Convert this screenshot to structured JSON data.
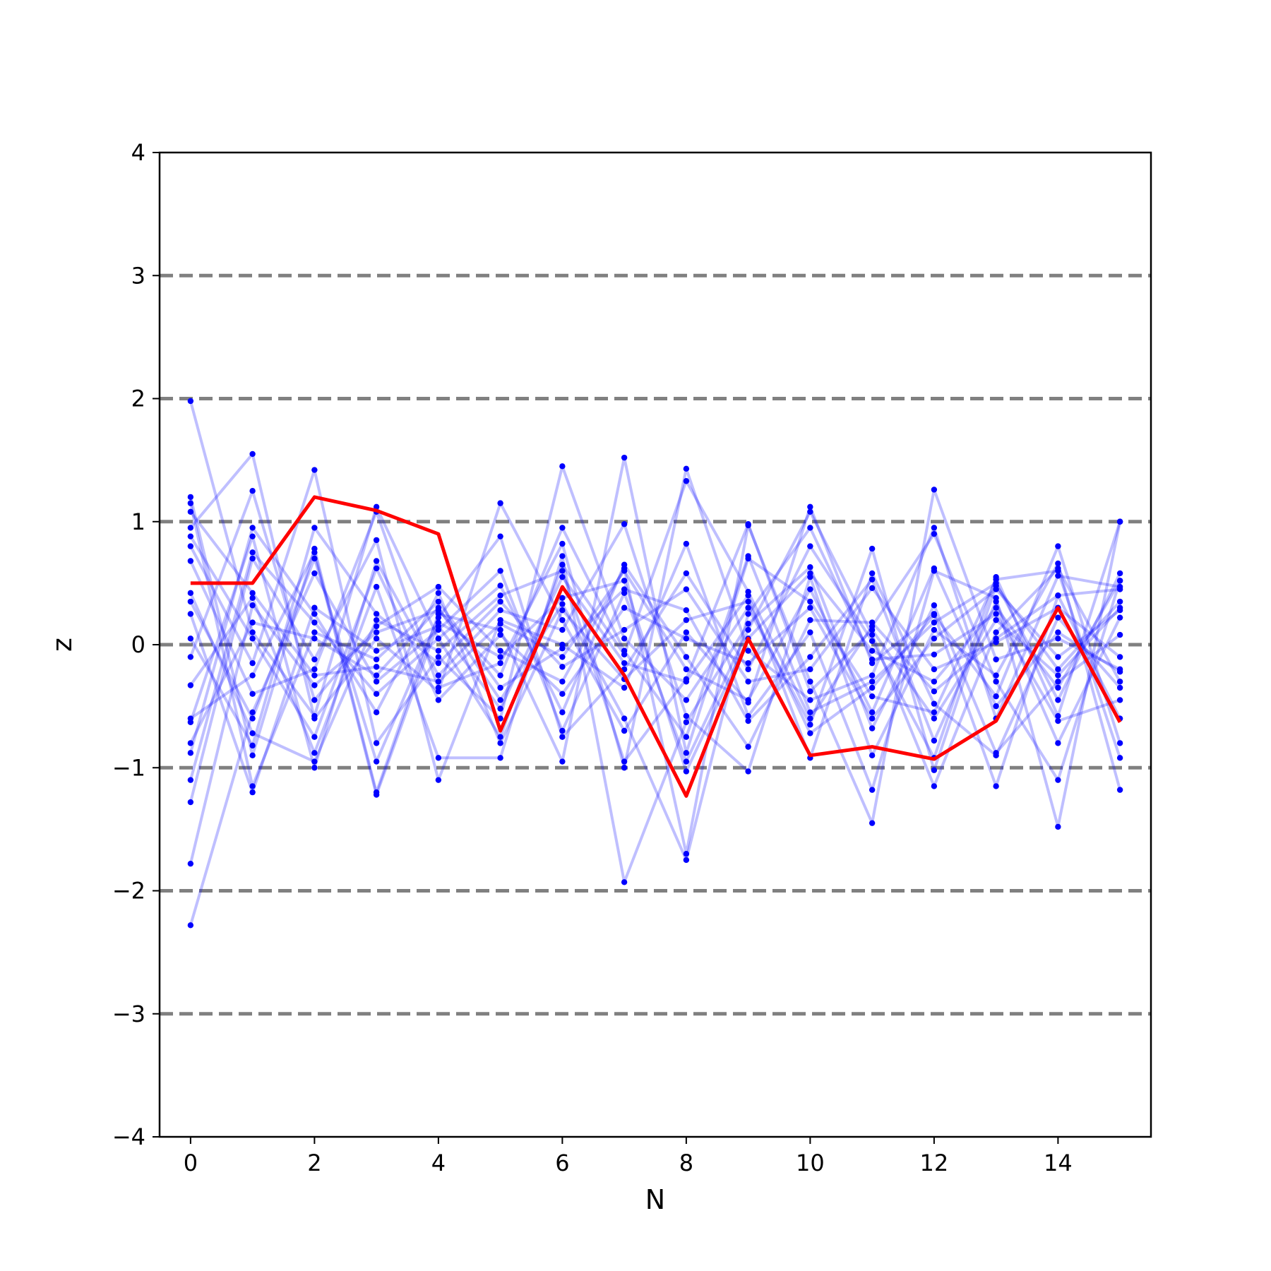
{
  "chart_data": {
    "type": "line",
    "xlabel": "N",
    "ylabel": "z",
    "xlim": [
      -0.5,
      15.5
    ],
    "ylim": [
      -4,
      4
    ],
    "x": [
      0,
      1,
      2,
      3,
      4,
      5,
      6,
      7,
      8,
      9,
      10,
      11,
      12,
      13,
      14,
      15
    ],
    "xticks": [
      0,
      2,
      4,
      6,
      8,
      10,
      12,
      14
    ],
    "yticks": [
      -4,
      -3,
      -2,
      -1,
      0,
      1,
      2,
      3,
      4
    ],
    "xtick_labels": [
      "0",
      "2",
      "4",
      "6",
      "8",
      "10",
      "12",
      "14"
    ],
    "ytick_labels": [
      "−4",
      "−3",
      "−2",
      "−1",
      "0",
      "1",
      "2",
      "3",
      "4"
    ],
    "reference_lines": [
      -3,
      -2,
      -1,
      0,
      1,
      2,
      3
    ],
    "reference_line_style": "dashed",
    "reference_line_color": "#808080",
    "background_color": "#0000ff",
    "highlight_color": "#ff0000",
    "background_series": [
      {
        "values": [
          1.98,
          0.1,
          -0.58,
          1.12,
          0.05,
          -0.75,
          0.65,
          -0.08,
          1.33,
          0.43,
          -0.6,
          0.15,
          0.9,
          -0.3,
          -1.1,
          0.52
        ]
      },
      {
        "values": [
          1.2,
          -0.9,
          0.78,
          -1.2,
          0.25,
          0.12,
          -0.95,
          1.52,
          -0.88,
          0.7,
          0.35,
          -0.42,
          -0.55,
          0.53,
          0.6,
          -0.92
        ]
      },
      {
        "values": [
          0.95,
          1.55,
          -0.6,
          0.05,
          -0.38,
          1.15,
          0.2,
          -0.7,
          0.1,
          -0.47,
          1.12,
          -0.15,
          0.25,
          -1.15,
          0.4,
          0.45
        ]
      },
      {
        "values": [
          0.8,
          -0.15,
          1.42,
          -0.8,
          -0.1,
          -0.6,
          1.45,
          0.05,
          -0.45,
          0.3,
          -0.65,
          0.78,
          -1.02,
          0.48,
          -0.2,
          0.35
        ]
      },
      {
        "values": [
          -0.1,
          1.25,
          -0.45,
          0.15,
          0.47,
          -0.05,
          -0.3,
          0.62,
          -1.7,
          0.97,
          -0.3,
          -1.45,
          1.26,
          -0.12,
          0.05,
          -0.2
        ]
      },
      {
        "values": [
          0.35,
          -0.6,
          0.7,
          -0.95,
          0.22,
          0.88,
          -0.75,
          -0.2,
          0.58,
          -0.2,
          0.8,
          0.03,
          -0.92,
          0.55,
          -0.58,
          1.0
        ]
      },
      {
        "values": [
          -0.63,
          0.88,
          -1.0,
          0.68,
          -0.25,
          0.28,
          0.12,
          0.98,
          -0.58,
          -1.03,
          0.55,
          -0.9,
          0.12,
          -0.25,
          0.66,
          -1.18
        ]
      },
      {
        "values": [
          1.15,
          -1.15,
          0.1,
          -0.12,
          0.35,
          -0.35,
          -0.03,
          0.45,
          0.28,
          -0.62,
          -0.1,
          0.53,
          -0.78,
          0.35,
          -0.8,
          0.22
        ]
      },
      {
        "values": [
          -0.33,
          0.38,
          -0.88,
          0.47,
          -0.92,
          -0.92,
          0.72,
          -1.93,
          -0.63,
          0.17,
          0.63,
          -0.68,
          0.32,
          -0.88,
          -0.3,
          0.08
        ]
      },
      {
        "values": [
          -1.1,
          0.75,
          0.18,
          -0.4,
          0.05,
          0.48,
          -0.55,
          0.65,
          -0.1,
          -0.83,
          0.2,
          0.18,
          -0.38,
          0.05,
          0.4,
          -0.6
        ]
      },
      {
        "values": [
          0.68,
          -0.4,
          -0.2,
          1.08,
          -0.35,
          -0.15,
          0.82,
          -1.0,
          1.43,
          -0.05,
          -0.45,
          -0.25,
          0.95,
          -0.6,
          0.56,
          0.47
        ]
      },
      {
        "values": [
          -0.8,
          0.18,
          0.05,
          -0.25,
          0.3,
          -0.45,
          0.33,
          -0.6,
          -1.75,
          0.25,
          0.95,
          -0.12,
          -0.08,
          0.25,
          -0.62,
          -0.45
        ]
      },
      {
        "values": [
          0.05,
          -0.82,
          0.95,
          0.25,
          -0.15,
          0.35,
          -0.18,
          0.12,
          0.45,
          -0.3,
          -0.2,
          0.46,
          -0.2,
          0.02,
          0.3,
          -0.1
        ]
      },
      {
        "values": [
          -1.28,
          0.7,
          -0.12,
          0.85,
          -1.1,
          0.2,
          0.0,
          -0.35,
          0.82,
          -0.58,
          0.1,
          -1.18,
          0.6,
          0.38,
          -1.48,
          1.0
        ]
      },
      {
        "values": [
          0.25,
          -1.2,
          0.3,
          -0.05,
          0.15,
          -0.52,
          0.55,
          -0.15,
          -0.3,
          0.4,
          -0.92,
          0.58,
          -0.48,
          -0.9,
          0.22,
          -0.35
        ]
      },
      {
        "values": [
          -1.78,
          0.32,
          -0.33,
          0.1,
          0.28,
          -0.25,
          0.95,
          -0.05,
          -0.75,
          0.72,
          -0.55,
          -0.3,
          0.18,
          0.5,
          -0.45,
          0.58
        ]
      },
      {
        "values": [
          -2.28,
          -0.55,
          0.58,
          -0.3,
          0.12,
          0.6,
          -0.7,
          0.42,
          -0.95,
          0.12,
          1.08,
          0.08,
          -1.15,
          0.1,
          0.62,
          -0.3
        ]
      },
      {
        "values": [
          0.88,
          0.05,
          -0.75,
          0.62,
          -0.45,
          0.08,
          -0.4,
          0.3,
          0.05,
          -0.15,
          0.3,
          -0.6,
          0.05,
          0.45,
          -0.1,
          0.28
        ]
      },
      {
        "values": [
          -0.88,
          0.95,
          0.25,
          -0.55,
          0.42,
          -0.8,
          0.28,
          -0.28,
          0.2,
          0.35,
          -0.72,
          -0.35,
          0.24,
          -0.42,
          0.8,
          -0.8
        ]
      },
      {
        "values": [
          0.42,
          -0.72,
          -0.95,
          0.2,
          -0.05,
          0.4,
          0.6,
          -0.95,
          -0.28,
          0.98,
          -0.38,
          0.12,
          -0.6,
          0.2,
          -0.25,
          0.3
        ]
      },
      {
        "values": [
          1.08,
          0.42,
          -0.25,
          -0.18,
          -0.3,
          0.17,
          -0.1,
          0.6,
          -0.2,
          -0.45,
          0.45,
          -0.55,
          0.62,
          -0.5,
          0.1,
          -0.22
        ]
      },
      {
        "values": [
          -0.6,
          -0.25,
          0.75,
          -1.22,
          0.18,
          -0.1,
          0.38,
          0.52,
          -1.03,
          0.05,
          0.58,
          -0.05,
          -0.3,
          0.3,
          -0.35,
          0.52
        ]
      }
    ],
    "highlight_series": {
      "values": [
        0.5,
        0.5,
        1.2,
        1.09,
        0.9,
        -0.7,
        0.47,
        -0.25,
        -1.23,
        0.05,
        -0.9,
        -0.83,
        -0.93,
        -0.62,
        0.3,
        -0.63
      ]
    }
  }
}
